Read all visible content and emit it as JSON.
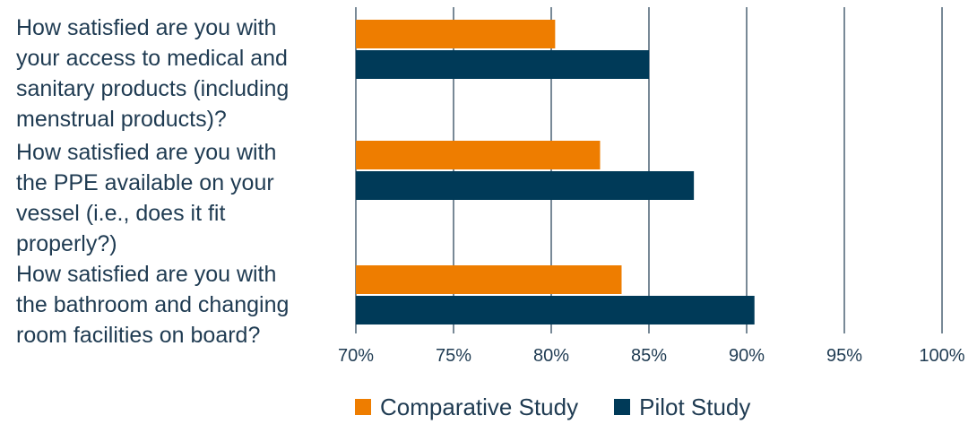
{
  "chart_data": {
    "type": "bar",
    "orientation": "horizontal",
    "categories": [
      "How satisfied are you with your access to medical and sanitary products (including menstrual products)?",
      "How satisfied are you with the PPE available on your vessel (i.e., does it fit properly?)",
      "How satisfied are you with the bathroom and changing room facilities on board?"
    ],
    "category_lines": [
      [
        "How satisfied are you with",
        "your access to medical and",
        "sanitary products (including",
        "menstrual products)?"
      ],
      [
        "How satisfied are you with",
        "the PPE available on your",
        "vessel (i.e., does it fit",
        "properly?)"
      ],
      [
        "How satisfied are you with",
        "the bathroom and changing",
        "room facilities on board?"
      ]
    ],
    "series": [
      {
        "name": "Comparative Study",
        "color": "#ee7d00",
        "values": [
          80.2,
          82.5,
          83.6
        ]
      },
      {
        "name": "Pilot Study",
        "color": "#003a58",
        "values": [
          85.0,
          87.3,
          90.4
        ]
      }
    ],
    "xlim": [
      70,
      100
    ],
    "xticks": [
      70,
      75,
      80,
      85,
      90,
      95,
      100
    ],
    "xtick_labels": [
      "70%",
      "75%",
      "80%",
      "85%",
      "90%",
      "95%",
      "100%"
    ],
    "grid": true,
    "legend_position": "bottom"
  }
}
